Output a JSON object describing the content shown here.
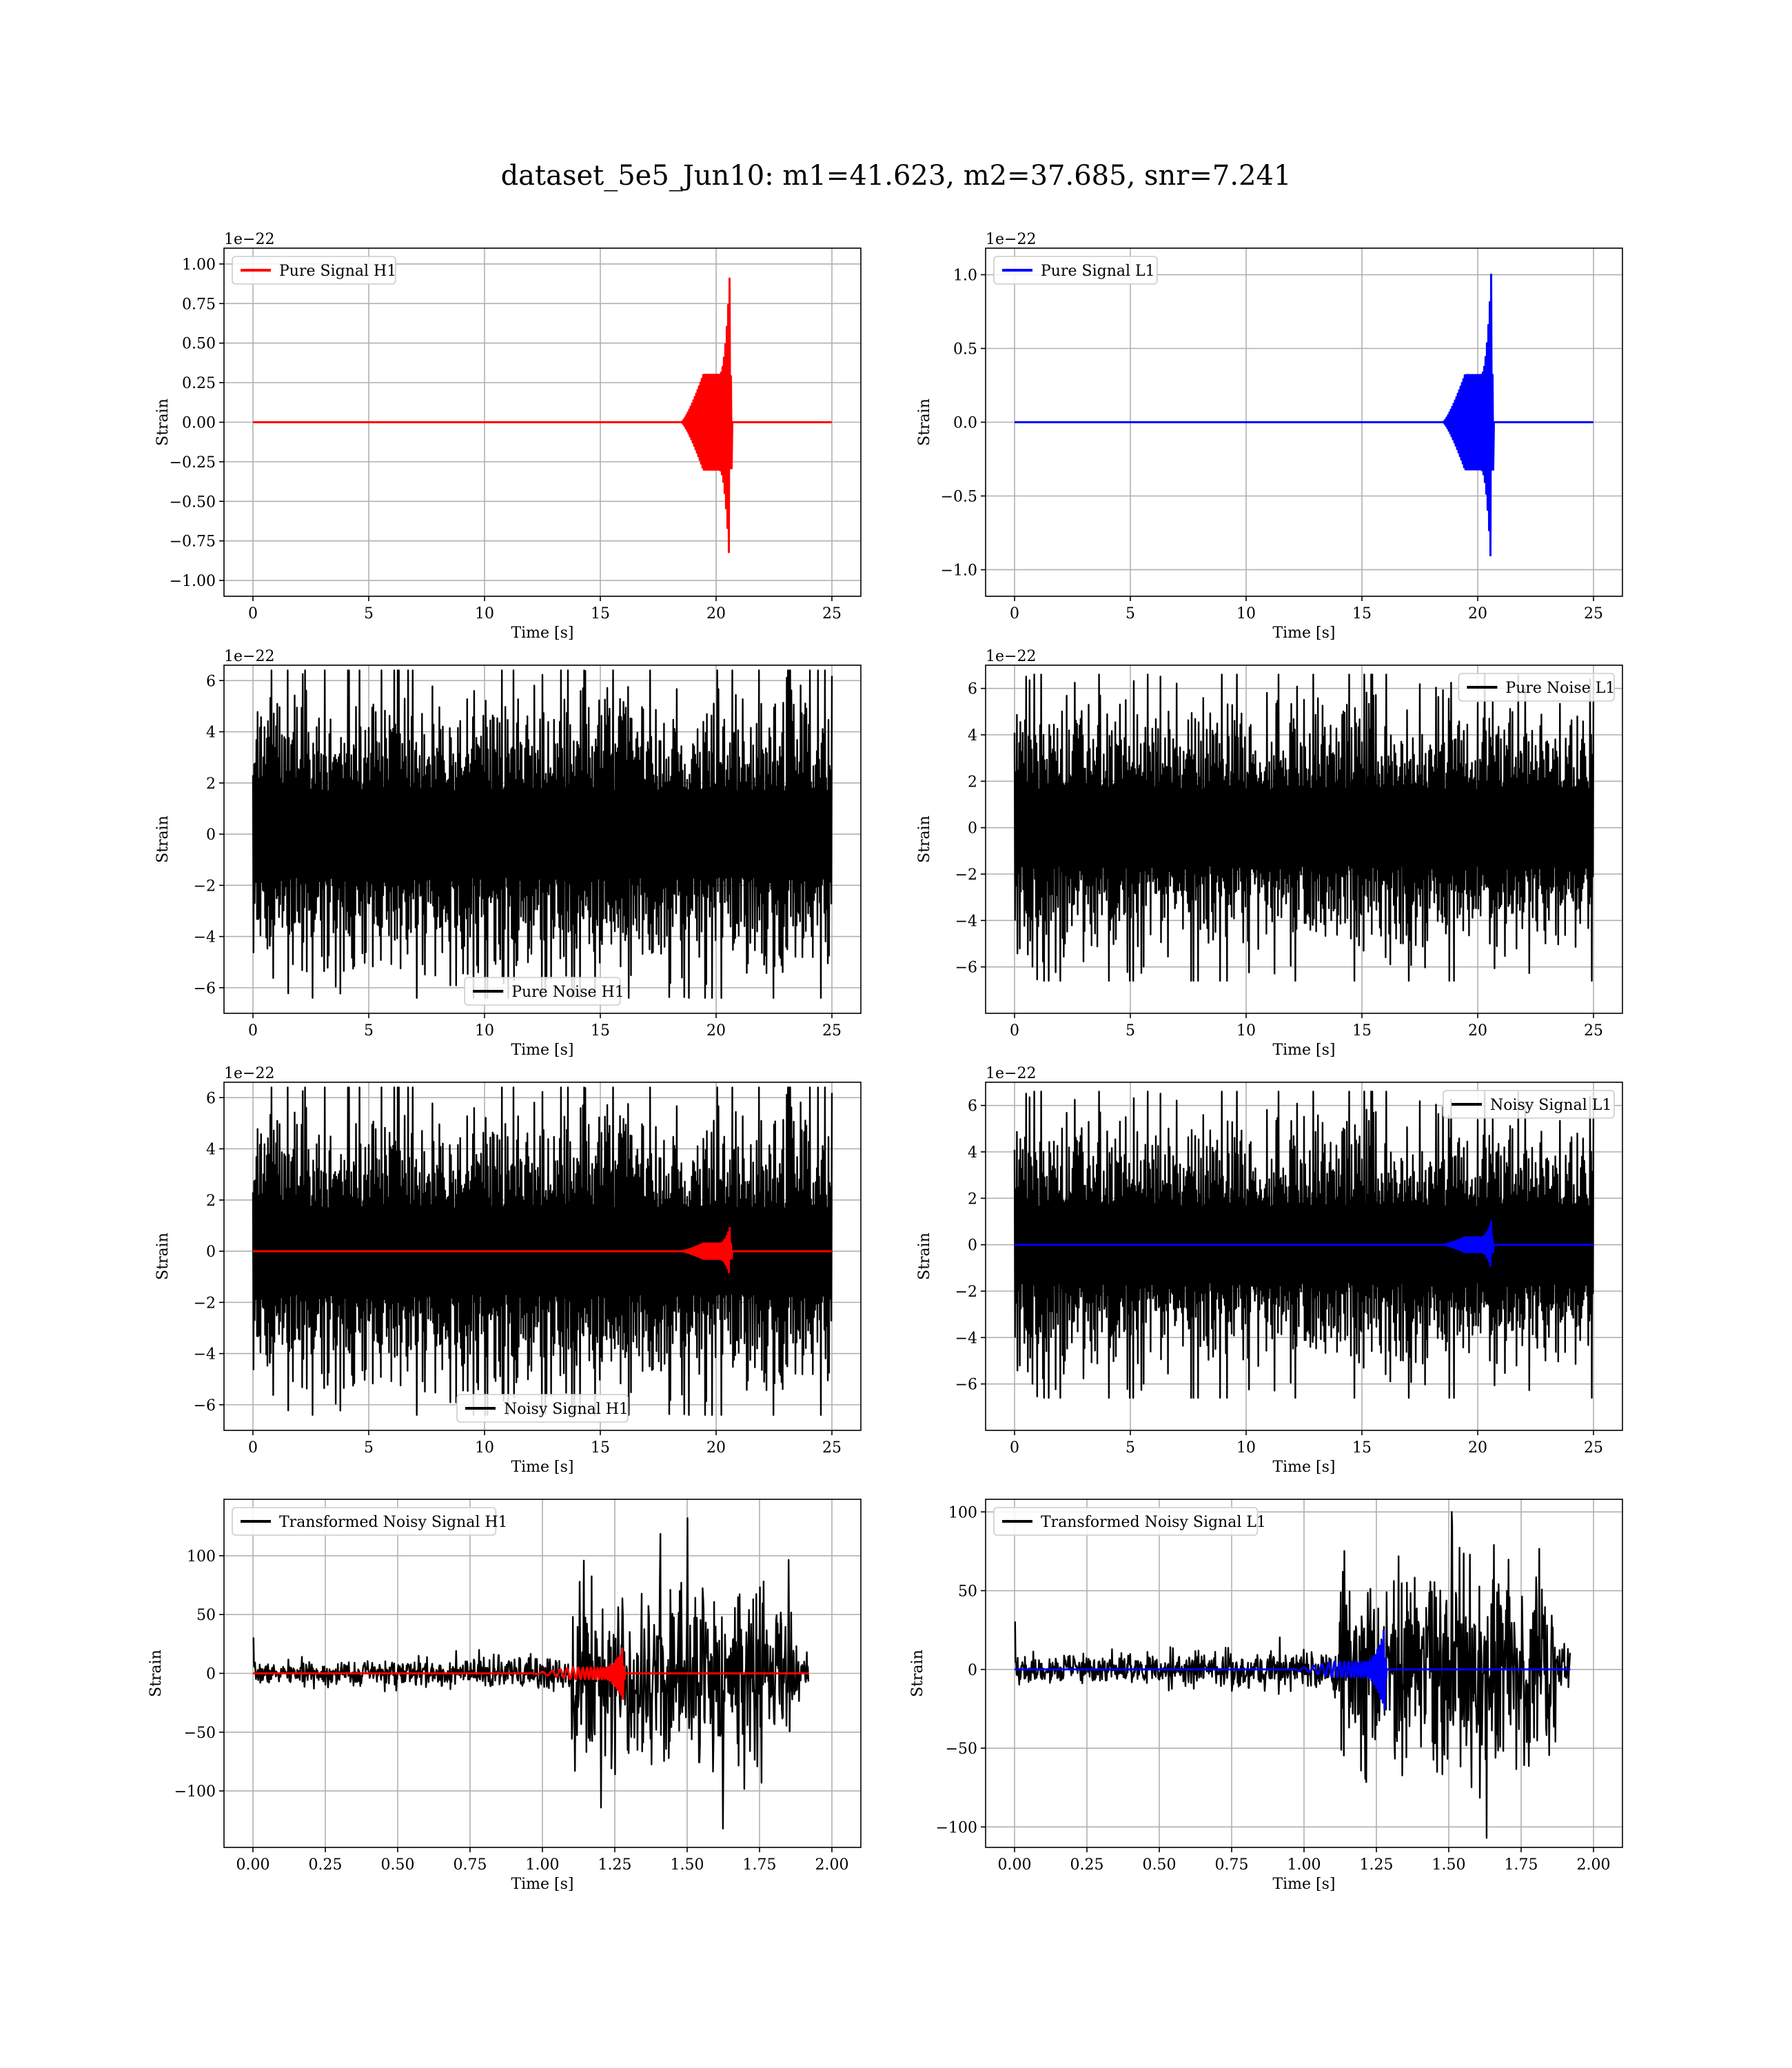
{
  "suptitle": "dataset_5e5_Jun10: m1=41.623, m2=37.685, snr=7.241",
  "colors": {
    "h1": "#ff0000",
    "l1": "#0000ff",
    "noise": "#000000",
    "grid": "#b0b0b0"
  },
  "chart_data": [
    {
      "id": "pure-signal-h1",
      "type": "line",
      "xlabel": "Time [s]",
      "ylabel": "Strain",
      "offset_label": "1e−22",
      "xlim": [
        -1.25,
        26.25
      ],
      "ylim": [
        -1.1,
        1.1
      ],
      "xticks": [
        0,
        5,
        10,
        15,
        20,
        25
      ],
      "xtick_labels": [
        "0",
        "5",
        "10",
        "15",
        "20",
        "25"
      ],
      "yticks": [
        -1.0,
        -0.75,
        -0.5,
        -0.25,
        0.0,
        0.25,
        0.5,
        0.75,
        1.0
      ],
      "ytick_labels": [
        "−1.00",
        "−0.75",
        "−0.50",
        "−0.25",
        "0.00",
        "0.25",
        "0.50",
        "0.75",
        "1.00"
      ],
      "grid": true,
      "legend_loc": "upper-left",
      "series": [
        {
          "name": "Pure Signal H1",
          "color": "#ff0000",
          "kind": "chirp",
          "x_range": [
            0,
            25
          ],
          "chirp_start": 18.5,
          "merger": 20.6,
          "plateau_amp": 0.3,
          "peak_amp": 0.97,
          "noise_amp": 0,
          "step": 0.03
        }
      ]
    },
    {
      "id": "pure-signal-l1",
      "type": "line",
      "xlabel": "Time [s]",
      "ylabel": "Strain",
      "offset_label": "1e−22",
      "xlim": [
        -1.25,
        26.25
      ],
      "ylim": [
        -1.18,
        1.18
      ],
      "xticks": [
        0,
        5,
        10,
        15,
        20,
        25
      ],
      "xtick_labels": [
        "0",
        "5",
        "10",
        "15",
        "20",
        "25"
      ],
      "yticks": [
        -1.0,
        -0.5,
        0.0,
        0.5,
        1.0
      ],
      "ytick_labels": [
        "−1.0",
        "−0.5",
        "0.0",
        "0.5",
        "1.0"
      ],
      "grid": true,
      "legend_loc": "upper-left",
      "series": [
        {
          "name": "Pure Signal L1",
          "color": "#0000ff",
          "kind": "chirp",
          "x_range": [
            0,
            25
          ],
          "chirp_start": 18.5,
          "merger": 20.6,
          "plateau_amp": 0.32,
          "peak_amp": 1.07,
          "noise_amp": 0,
          "step": 0.03
        }
      ]
    },
    {
      "id": "pure-noise-h1",
      "type": "line",
      "xlabel": "Time [s]",
      "ylabel": "Strain",
      "offset_label": "1e−22",
      "xlim": [
        -1.25,
        26.25
      ],
      "ylim": [
        -7.0,
        6.6
      ],
      "xticks": [
        0,
        5,
        10,
        15,
        20,
        25
      ],
      "xtick_labels": [
        "0",
        "5",
        "10",
        "15",
        "20",
        "25"
      ],
      "yticks": [
        -6,
        -4,
        -2,
        0,
        2,
        4,
        6
      ],
      "ytick_labels": [
        "−6",
        "−4",
        "−2",
        "0",
        "2",
        "4",
        "6"
      ],
      "grid": true,
      "legend_loc": "lower-center",
      "series": [
        {
          "name": "Pure Noise H1",
          "color": "#000000",
          "kind": "noise",
          "x_range": [
            0,
            25
          ],
          "noise_amp": 3.7,
          "noise_peak": 6.4,
          "step": 0.025,
          "seed": 11
        }
      ]
    },
    {
      "id": "pure-noise-l1",
      "type": "line",
      "xlabel": "Time [s]",
      "ylabel": "Strain",
      "offset_label": "1e−22",
      "xlim": [
        -1.25,
        26.25
      ],
      "ylim": [
        -8.0,
        7.0
      ],
      "xticks": [
        0,
        5,
        10,
        15,
        20,
        25
      ],
      "xtick_labels": [
        "0",
        "5",
        "10",
        "15",
        "20",
        "25"
      ],
      "yticks": [
        -6,
        -4,
        -2,
        0,
        2,
        4,
        6
      ],
      "ytick_labels": [
        "−6",
        "−4",
        "−2",
        "0",
        "2",
        "4",
        "6"
      ],
      "grid": true,
      "legend_loc": "upper-right",
      "series": [
        {
          "name": "Pure Noise L1",
          "color": "#000000",
          "kind": "noise",
          "x_range": [
            0,
            25
          ],
          "noise_amp": 3.6,
          "noise_peak": 6.6,
          "step": 0.025,
          "seed": 23
        }
      ]
    },
    {
      "id": "noisy-signal-h1",
      "type": "line",
      "xlabel": "Time [s]",
      "ylabel": "Strain",
      "offset_label": "1e−22",
      "xlim": [
        -1.25,
        26.25
      ],
      "ylim": [
        -7.0,
        6.6
      ],
      "xticks": [
        0,
        5,
        10,
        15,
        20,
        25
      ],
      "xtick_labels": [
        "0",
        "5",
        "10",
        "15",
        "20",
        "25"
      ],
      "yticks": [
        -6,
        -4,
        -2,
        0,
        2,
        4,
        6
      ],
      "ytick_labels": [
        "−6",
        "−4",
        "−2",
        "0",
        "2",
        "4",
        "6"
      ],
      "grid": true,
      "legend_loc": "lower-center",
      "series": [
        {
          "name": "Noisy Signal H1",
          "color": "#000000",
          "kind": "noise",
          "x_range": [
            0,
            25
          ],
          "noise_amp": 3.7,
          "noise_peak": 6.4,
          "step": 0.025,
          "seed": 11
        },
        {
          "color": "#ff0000",
          "kind": "chirp",
          "x_range": [
            0,
            25
          ],
          "chirp_start": 18.5,
          "merger": 20.6,
          "plateau_amp": 0.3,
          "peak_amp": 0.97,
          "noise_amp": 0,
          "step": 0.03
        }
      ]
    },
    {
      "id": "noisy-signal-l1",
      "type": "line",
      "xlabel": "Time [s]",
      "ylabel": "Strain",
      "offset_label": "1e−22",
      "xlim": [
        -1.25,
        26.25
      ],
      "ylim": [
        -8.0,
        7.0
      ],
      "xticks": [
        0,
        5,
        10,
        15,
        20,
        25
      ],
      "xtick_labels": [
        "0",
        "5",
        "10",
        "15",
        "20",
        "25"
      ],
      "yticks": [
        -6,
        -4,
        -2,
        0,
        2,
        4,
        6
      ],
      "ytick_labels": [
        "−6",
        "−4",
        "−2",
        "0",
        "2",
        "4",
        "6"
      ],
      "grid": true,
      "legend_loc": "upper-right",
      "series": [
        {
          "name": "Noisy Signal L1",
          "color": "#000000",
          "kind": "noise",
          "x_range": [
            0,
            25
          ],
          "noise_amp": 3.6,
          "noise_peak": 6.6,
          "step": 0.025,
          "seed": 23
        },
        {
          "color": "#0000ff",
          "kind": "chirp",
          "x_range": [
            0,
            25
          ],
          "chirp_start": 18.5,
          "merger": 20.6,
          "plateau_amp": 0.32,
          "peak_amp": 1.07,
          "noise_amp": 0,
          "step": 0.03
        }
      ]
    },
    {
      "id": "transformed-noisy-signal-h1",
      "type": "line",
      "xlabel": "Time [s]",
      "ylabel": "Strain",
      "offset_label": "",
      "xlim": [
        -0.1,
        2.1
      ],
      "ylim": [
        -148,
        148
      ],
      "xticks": [
        0.0,
        0.25,
        0.5,
        0.75,
        1.0,
        1.25,
        1.5,
        1.75,
        2.0
      ],
      "xtick_labels": [
        "0.00",
        "0.25",
        "0.50",
        "0.75",
        "1.00",
        "1.25",
        "1.50",
        "1.75",
        "2.00"
      ],
      "yticks": [
        -100,
        -50,
        0,
        50,
        100
      ],
      "ytick_labels": [
        "−100",
        "−50",
        "0",
        "50",
        "100"
      ],
      "grid": true,
      "legend_loc": "upper-left",
      "series": [
        {
          "name": "Transformed Noisy Signal H1",
          "color": "#000000",
          "kind": "whitened",
          "x_range": [
            0,
            1.92
          ],
          "merger": 1.28,
          "base_amp": 4,
          "mid_amp": 10,
          "burst_amp": 38,
          "burst_start": 1.1,
          "burst_end": 1.87,
          "max_peak": 132,
          "min_peak": -132,
          "step": 0.0018,
          "seed": 7
        },
        {
          "color": "#ff0000",
          "kind": "chirp",
          "x_range": [
            0,
            1.92
          ],
          "chirp_start": 0.95,
          "merger": 1.28,
          "plateau_amp": 5,
          "peak_amp": 24,
          "noise_amp": 0,
          "step": 0.0015,
          "oscillate": true
        }
      ]
    },
    {
      "id": "transformed-noisy-signal-l1",
      "type": "line",
      "xlabel": "Time [s]",
      "ylabel": "Strain",
      "offset_label": "",
      "xlim": [
        -0.1,
        2.1
      ],
      "ylim": [
        -113,
        108
      ],
      "xticks": [
        0.0,
        0.25,
        0.5,
        0.75,
        1.0,
        1.25,
        1.5,
        1.75,
        2.0
      ],
      "xtick_labels": [
        "0.00",
        "0.25",
        "0.50",
        "0.75",
        "1.00",
        "1.25",
        "1.50",
        "1.75",
        "2.00"
      ],
      "yticks": [
        -100,
        -50,
        0,
        50,
        100
      ],
      "ytick_labels": [
        "−100",
        "−50",
        "0",
        "50",
        "100"
      ],
      "grid": true,
      "legend_loc": "upper-left",
      "series": [
        {
          "name": "Transformed Noisy Signal L1",
          "color": "#000000",
          "kind": "whitened",
          "x_range": [
            0,
            1.92
          ],
          "merger": 1.28,
          "base_amp": 4,
          "mid_amp": 9,
          "burst_amp": 32,
          "burst_start": 1.12,
          "burst_end": 1.87,
          "max_peak": 100,
          "min_peak": -107,
          "step": 0.0018,
          "seed": 19
        },
        {
          "color": "#0000ff",
          "kind": "chirp",
          "x_range": [
            0,
            1.92
          ],
          "chirp_start": 0.95,
          "merger": 1.28,
          "plateau_amp": 5,
          "peak_amp": 28,
          "noise_amp": 0,
          "step": 0.0015,
          "oscillate": true
        }
      ]
    }
  ]
}
